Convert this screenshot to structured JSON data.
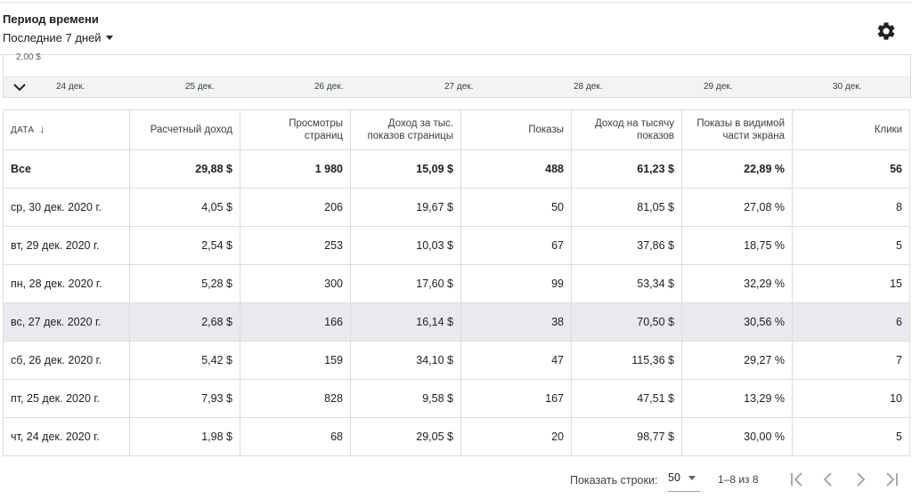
{
  "header": {
    "title": "Период времени",
    "period_value": "Последние 7 дней"
  },
  "chart_strip": {
    "y_label": "2,00 $",
    "dates": [
      "24 дек.",
      "25 дек.",
      "26 дек.",
      "27 дек.",
      "28 дек.",
      "29 дек.",
      "30 дек."
    ]
  },
  "table": {
    "columns": [
      "ДАТА",
      "Расчетный доход",
      "Просмотры страниц",
      "Доход за тыс. показов страницы",
      "Показы",
      "Доход на тысячу показов",
      "Показы в видимой части экрана",
      "Клики"
    ],
    "total": [
      "Все",
      "29,88 $",
      "1 980",
      "15,09 $",
      "488",
      "61,23 $",
      "22,89 %",
      "56"
    ],
    "rows": [
      [
        "ср, 30 дек. 2020 г.",
        "4,05 $",
        "206",
        "19,67 $",
        "50",
        "81,05 $",
        "27,08 %",
        "8"
      ],
      [
        "вт, 29 дек. 2020 г.",
        "2,54 $",
        "253",
        "10,03 $",
        "67",
        "37,86 $",
        "18,75 %",
        "5"
      ],
      [
        "пн, 28 дек. 2020 г.",
        "5,28 $",
        "300",
        "17,60 $",
        "99",
        "53,34 $",
        "32,29 %",
        "15"
      ],
      [
        "вс, 27 дек. 2020 г.",
        "2,68 $",
        "166",
        "16,14 $",
        "38",
        "70,50 $",
        "30,56 %",
        "6"
      ],
      [
        "сб, 26 дек. 2020 г.",
        "5,42 $",
        "159",
        "34,10 $",
        "47",
        "115,36 $",
        "29,27 %",
        "7"
      ],
      [
        "пт, 25 дек. 2020 г.",
        "7,93 $",
        "828",
        "9,58 $",
        "167",
        "47,51 $",
        "13,29 %",
        "10"
      ],
      [
        "чт, 24 дек. 2020 г.",
        "1,98 $",
        "68",
        "29,05 $",
        "20",
        "98,77 $",
        "30,00 %",
        "5"
      ]
    ]
  },
  "pager": {
    "rows_label": "Показать строки:",
    "rows_value": "50",
    "range": "1–8 из 8"
  }
}
